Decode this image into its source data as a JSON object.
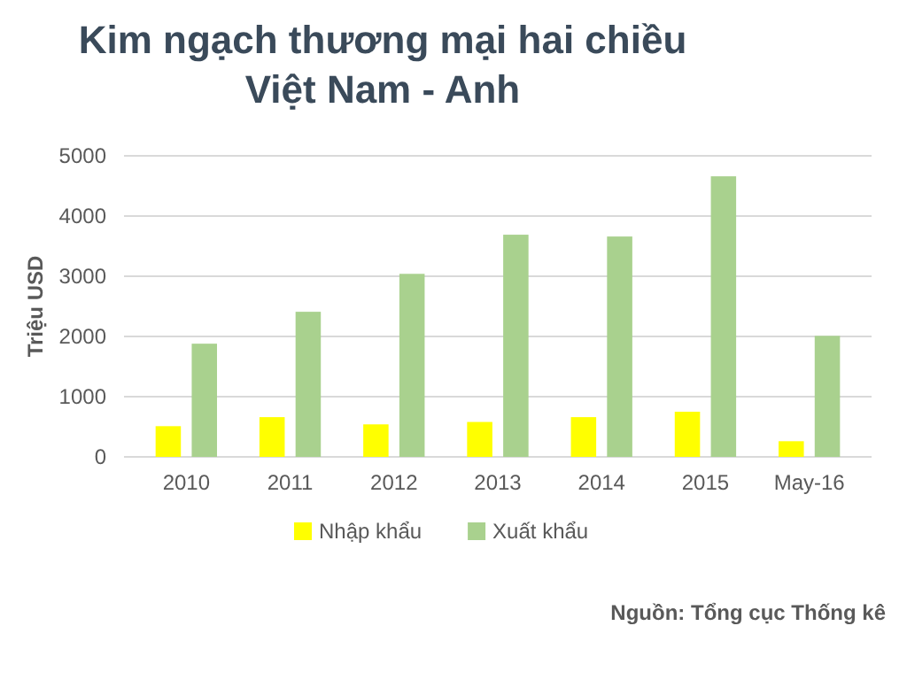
{
  "chart_data": {
    "type": "bar",
    "title": "Kim ngạch thương mại hai chiều\nViệt Nam - Anh",
    "ylabel": "Triệu USD",
    "categories": [
      "2010",
      "2011",
      "2012",
      "2013",
      "2014",
      "2015",
      "May-16"
    ],
    "series": [
      {
        "name": "Nhập khẩu",
        "color": "#ffff00",
        "values": [
          510,
          660,
          540,
          580,
          660,
          750,
          260
        ]
      },
      {
        "name": "Xuất khẩu",
        "color": "#a9d18e",
        "values": [
          1880,
          2410,
          3040,
          3690,
          3660,
          4660,
          2010
        ]
      }
    ],
    "ylim": [
      0,
      5000
    ],
    "yticks": [
      0,
      1000,
      2000,
      3000,
      4000,
      5000
    ],
    "grid": "y",
    "legend": "bottom",
    "annotations": [
      "Nguồn: Tổng cục Thống kê"
    ]
  }
}
